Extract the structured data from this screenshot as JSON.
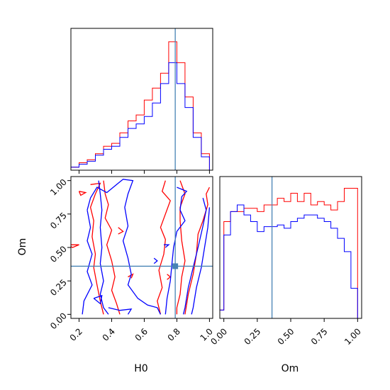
{
  "chart_data": {
    "type": "corner",
    "parameters": [
      "H0",
      "Om"
    ],
    "truth": {
      "H0": 0.79,
      "Om": 0.36
    },
    "colors": {
      "series_a": "#ff0000",
      "series_b": "#0000ff",
      "truth": "#4682b4"
    },
    "axes": {
      "H0": {
        "range": [
          0.15,
          1.02
        ],
        "ticks": [
          "0.2",
          "0.4",
          "0.6",
          "0.8",
          "1.0"
        ],
        "tick_values": [
          0.2,
          0.4,
          0.6,
          0.8,
          1.0
        ]
      },
      "Om": {
        "range": [
          -0.03,
          1.03
        ],
        "ticks": [
          "0.00",
          "0.25",
          "0.50",
          "0.75",
          "1.00"
        ],
        "tick_values": [
          0.0,
          0.25,
          0.5,
          0.75,
          1.0
        ]
      }
    },
    "hist_H0": {
      "bin_edges": [
        0.15,
        0.2,
        0.25,
        0.3,
        0.35,
        0.4,
        0.45,
        0.5,
        0.55,
        0.6,
        0.65,
        0.7,
        0.75,
        0.8,
        0.85,
        0.9,
        0.95,
        1.0
      ],
      "series": [
        {
          "color": "red",
          "counts": [
            2,
            5,
            7,
            11,
            16,
            18,
            25,
            33,
            37,
            47,
            55,
            65,
            86,
            72,
            49,
            25,
            11
          ]
        },
        {
          "color": "blue",
          "counts": [
            2,
            4,
            6,
            10,
            14,
            16,
            22,
            28,
            31,
            36,
            45,
            58,
            72,
            58,
            42,
            22,
            9
          ]
        }
      ],
      "ymax": 95
    },
    "hist_Om": {
      "bin_edges": [
        -0.03,
        0.0,
        0.05,
        0.1,
        0.15,
        0.2,
        0.25,
        0.3,
        0.35,
        0.4,
        0.45,
        0.5,
        0.55,
        0.6,
        0.65,
        0.7,
        0.75,
        0.8,
        0.85,
        0.9,
        0.95,
        1.0
      ],
      "series": [
        {
          "color": "red",
          "counts": [
            5,
            58,
            64,
            64,
            66,
            66,
            64,
            68,
            68,
            72,
            70,
            75,
            70,
            75,
            68,
            70,
            68,
            65,
            70,
            78,
            78
          ]
        },
        {
          "color": "blue",
          "counts": [
            5,
            50,
            64,
            68,
            62,
            58,
            52,
            55,
            55,
            56,
            54,
            58,
            60,
            62,
            62,
            60,
            58,
            54,
            48,
            40,
            18
          ]
        }
      ],
      "ymax": 85
    },
    "contours": [
      {
        "color": "red",
        "points": [
          [
            0.27,
            0.97
          ],
          [
            0.33,
            0.98
          ],
          [
            0.3,
            0.9
          ],
          [
            0.27,
            0.8
          ],
          [
            0.29,
            0.7
          ],
          [
            0.28,
            0.58
          ],
          [
            0.3,
            0.45
          ],
          [
            0.29,
            0.35
          ],
          [
            0.31,
            0.22
          ],
          [
            0.33,
            0.1
          ],
          [
            0.35,
            0.0
          ]
        ]
      },
      {
        "color": "red",
        "points": [
          [
            0.2,
            0.92
          ],
          [
            0.24,
            0.91
          ],
          [
            0.21,
            0.89
          ],
          [
            0.2,
            0.92
          ]
        ]
      },
      {
        "color": "red",
        "points": [
          [
            0.35,
            1.0
          ],
          [
            0.36,
            0.9
          ],
          [
            0.38,
            0.82
          ],
          [
            0.36,
            0.72
          ],
          [
            0.4,
            0.63
          ],
          [
            0.37,
            0.52
          ],
          [
            0.4,
            0.4
          ],
          [
            0.42,
            0.28
          ],
          [
            0.4,
            0.18
          ],
          [
            0.43,
            0.08
          ],
          [
            0.45,
            0.0
          ]
        ]
      },
      {
        "color": "red",
        "points": [
          [
            0.13,
            0.52
          ],
          [
            0.2,
            0.52
          ],
          [
            0.16,
            0.5
          ],
          [
            0.13,
            0.52
          ]
        ]
      },
      {
        "color": "red",
        "points": [
          [
            0.44,
            0.65
          ],
          [
            0.47,
            0.62
          ],
          [
            0.44,
            0.6
          ]
        ]
      },
      {
        "color": "red",
        "points": [
          [
            0.5,
            0.28
          ],
          [
            0.53,
            0.3
          ],
          [
            0.52,
            0.27
          ]
        ]
      },
      {
        "color": "red",
        "points": [
          [
            0.73,
            1.0
          ],
          [
            0.71,
            0.92
          ],
          [
            0.76,
            0.85
          ],
          [
            0.73,
            0.75
          ],
          [
            0.7,
            0.65
          ],
          [
            0.73,
            0.56
          ],
          [
            0.72,
            0.45
          ],
          [
            0.69,
            0.33
          ],
          [
            0.71,
            0.2
          ],
          [
            0.68,
            0.1
          ],
          [
            0.7,
            0.0
          ]
        ]
      },
      {
        "color": "red",
        "points": [
          [
            0.74,
            0.3
          ],
          [
            0.76,
            0.28
          ],
          [
            0.74,
            0.26
          ]
        ]
      },
      {
        "color": "red",
        "points": [
          [
            0.82,
            1.0
          ],
          [
            0.85,
            0.9
          ],
          [
            0.82,
            0.8
          ],
          [
            0.82,
            0.7
          ],
          [
            0.83,
            0.55
          ],
          [
            0.85,
            0.4
          ],
          [
            0.83,
            0.28
          ],
          [
            0.82,
            0.15
          ],
          [
            0.8,
            0.05
          ],
          [
            0.8,
            0.0
          ]
        ]
      },
      {
        "color": "red",
        "points": [
          [
            1.0,
            0.95
          ],
          [
            0.98,
            0.9
          ],
          [
            0.99,
            0.82
          ],
          [
            0.96,
            0.7
          ],
          [
            0.93,
            0.6
          ],
          [
            0.92,
            0.45
          ],
          [
            0.9,
            0.3
          ],
          [
            0.87,
            0.15
          ],
          [
            0.85,
            0.0
          ]
        ]
      },
      {
        "color": "blue",
        "points": [
          [
            0.25,
            0.78
          ],
          [
            0.27,
            0.87
          ],
          [
            0.31,
            0.95
          ],
          [
            0.37,
            0.91
          ],
          [
            0.44,
            0.98
          ],
          [
            0.47,
            1.01
          ],
          [
            0.53,
            1.0
          ],
          [
            0.5,
            0.9
          ],
          [
            0.48,
            0.8
          ],
          [
            0.5,
            0.66
          ],
          [
            0.47,
            0.55
          ],
          [
            0.5,
            0.42
          ],
          [
            0.52,
            0.3
          ],
          [
            0.5,
            0.22
          ],
          [
            0.56,
            0.12
          ],
          [
            0.62,
            0.07
          ],
          [
            0.68,
            0.05
          ],
          [
            0.7,
            0.0
          ]
        ]
      },
      {
        "color": "blue",
        "points": [
          [
            0.25,
            0.78
          ],
          [
            0.27,
            0.65
          ],
          [
            0.25,
            0.55
          ],
          [
            0.28,
            0.45
          ],
          [
            0.25,
            0.32
          ],
          [
            0.28,
            0.22
          ],
          [
            0.23,
            0.1
          ],
          [
            0.22,
            0.0
          ]
        ]
      },
      {
        "color": "blue",
        "points": [
          [
            0.32,
            1.0
          ],
          [
            0.33,
            0.9
          ],
          [
            0.34,
            0.78
          ],
          [
            0.33,
            0.65
          ],
          [
            0.34,
            0.5
          ],
          [
            0.33,
            0.38
          ],
          [
            0.35,
            0.25
          ],
          [
            0.33,
            0.15
          ],
          [
            0.35,
            0.05
          ],
          [
            0.38,
            0.0
          ]
        ]
      },
      {
        "color": "blue",
        "points": [
          [
            0.29,
            0.12
          ],
          [
            0.34,
            0.14
          ],
          [
            0.33,
            0.08
          ],
          [
            0.29,
            0.12
          ]
        ]
      },
      {
        "color": "blue",
        "points": [
          [
            0.38,
            0.05
          ],
          [
            0.45,
            0.03
          ],
          [
            0.52,
            0.04
          ],
          [
            0.5,
            0.0
          ]
        ]
      },
      {
        "color": "blue",
        "points": [
          [
            0.72,
            0.52
          ],
          [
            0.75,
            0.52
          ],
          [
            0.73,
            0.5
          ]
        ]
      },
      {
        "color": "blue",
        "points": [
          [
            0.66,
            0.42
          ],
          [
            0.68,
            0.4
          ],
          [
            0.66,
            0.38
          ]
        ]
      },
      {
        "color": "blue",
        "points": [
          [
            0.8,
            0.95
          ],
          [
            0.86,
            0.92
          ],
          [
            0.83,
            0.88
          ],
          [
            0.82,
            0.78
          ],
          [
            0.85,
            0.7
          ],
          [
            0.8,
            0.62
          ],
          [
            0.78,
            0.5
          ],
          [
            0.77,
            0.38
          ],
          [
            0.76,
            0.25
          ],
          [
            0.74,
            0.12
          ],
          [
            0.73,
            0.0
          ]
        ]
      },
      {
        "color": "blue",
        "points": [
          [
            0.96,
            0.87
          ],
          [
            0.98,
            0.78
          ],
          [
            0.96,
            0.66
          ],
          [
            0.93,
            0.5
          ],
          [
            0.9,
            0.35
          ],
          [
            0.87,
            0.2
          ],
          [
            0.85,
            0.05
          ],
          [
            0.84,
            0.0
          ]
        ]
      },
      {
        "color": "blue",
        "points": [
          [
            1.0,
            0.8
          ],
          [
            0.99,
            0.65
          ],
          [
            0.97,
            0.5
          ],
          [
            0.95,
            0.35
          ],
          [
            0.92,
            0.2
          ],
          [
            0.9,
            0.05
          ],
          [
            0.89,
            0.0
          ]
        ]
      }
    ]
  }
}
